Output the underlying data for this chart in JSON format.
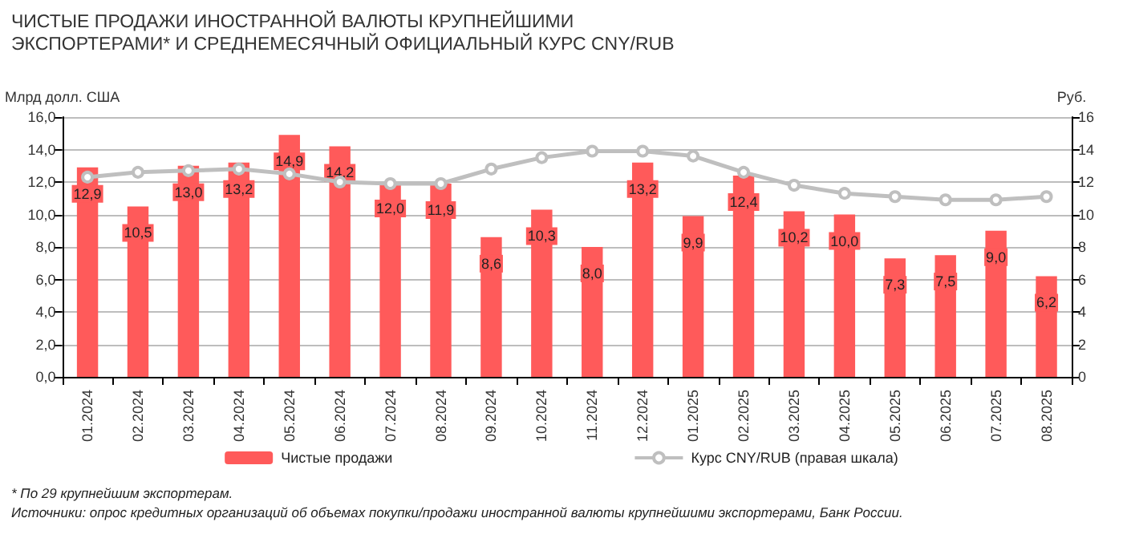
{
  "chart_data": {
    "type": "bar",
    "title": "ЧИСТЫЕ ПРОДАЖИ ИНОСТРАННОЙ ВАЛЮТЫ КРУПНЕЙШИМИ ЭКСПОРТЕРАМИ* И СРЕДНЕМЕСЯЧНЫЙ ОФИЦИАЛЬНЫЙ КУРС CNY/RUB",
    "ylabel": "Млрд долл. США",
    "y2label": "Руб.",
    "annotations": [
      "* По 29 крупнейшим экспортерам.",
      "Источники: опрос кредитных организаций об объемах покупки/продажи иностранной валюты крупнейшими экспортерами, Банк России."
    ],
    "categories": [
      "01.2024",
      "02.2024",
      "03.2024",
      "04.2024",
      "05.2024",
      "06.2024",
      "07.2024",
      "08.2024",
      "09.2024",
      "10.2024",
      "11.2024",
      "12.2024",
      "01.2025",
      "02.2025",
      "03.2025",
      "04.2025",
      "05.2025",
      "06.2025",
      "07.2025",
      "08.2025"
    ],
    "series": [
      {
        "name": "Чистые продажи",
        "color": "#ff5a5a",
        "values": [
          12.9,
          10.5,
          13.0,
          13.2,
          14.9,
          14.2,
          12.0,
          11.9,
          8.6,
          10.3,
          8.0,
          13.2,
          9.9,
          12.4,
          10.2,
          10.0,
          7.3,
          7.5,
          9.0,
          6.2
        ],
        "value_labels": [
          "12,9",
          "10,5",
          "13,0",
          "13,2",
          "14,9",
          "14,2",
          "12,0",
          "11,9",
          "8,6",
          "10,3",
          "8,0",
          "13,2",
          "9,9",
          "12,4",
          "10,2",
          "10,0",
          "7,3",
          "7,5",
          "9,0",
          "6,2"
        ]
      },
      {
        "name": "Курс CNY/RUB (правая шкала)",
        "type": "line",
        "axis": "y2",
        "color": "#bfbfbf",
        "marker": "circle",
        "values": [
          12.3,
          12.6,
          12.7,
          12.8,
          12.5,
          12.0,
          11.9,
          11.9,
          12.8,
          13.5,
          13.9,
          13.9,
          13.6,
          12.6,
          11.8,
          11.3,
          11.1,
          10.9,
          10.9,
          11.1
        ]
      }
    ],
    "ylim": [
      0,
      16
    ],
    "yticks": [
      {
        "value": 0,
        "label": "0,0"
      },
      {
        "value": 2,
        "label": "2,0"
      },
      {
        "value": 4,
        "label": "4,0"
      },
      {
        "value": 6,
        "label": "6,0"
      },
      {
        "value": 8,
        "label": "8,0"
      },
      {
        "value": 10,
        "label": "10,0"
      },
      {
        "value": 12,
        "label": "12,0"
      },
      {
        "value": 14,
        "label": "14,0"
      },
      {
        "value": 16,
        "label": "16,0"
      }
    ],
    "y2lim": [
      0,
      16
    ],
    "y2ticks": [
      0,
      2,
      4,
      6,
      8,
      10,
      12,
      14,
      16
    ],
    "grid": "y",
    "legend": "bottom"
  }
}
